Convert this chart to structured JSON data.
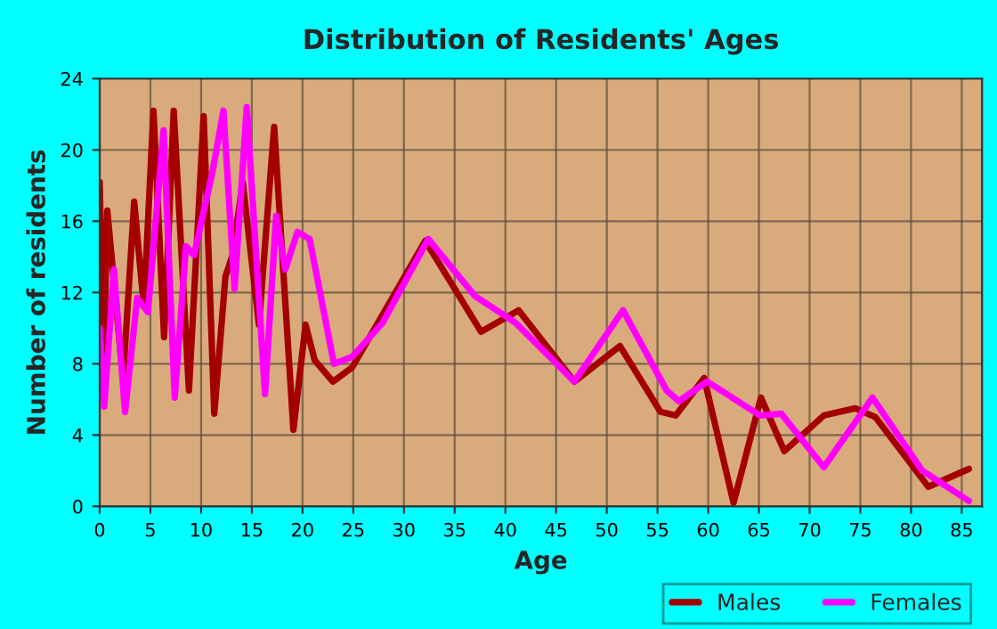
{
  "chart_data": {
    "type": "line",
    "title": "Distribution of Residents' Ages",
    "xlabel": "Age",
    "ylabel": "Number of residents",
    "xlim": [
      0,
      87
    ],
    "xticks": [
      0,
      5,
      10,
      15,
      20,
      25,
      30,
      35,
      40,
      45,
      50,
      55,
      60,
      65,
      70,
      75,
      80,
      85
    ],
    "ylim": [
      0,
      24
    ],
    "yticks": [
      0,
      4,
      8,
      12,
      16,
      20,
      24
    ],
    "grid": true,
    "legend": "bottom right",
    "marker": "none",
    "line_style": "solid",
    "series": [
      {
        "name": "Males",
        "color": "#a50000",
        "x": [
          0,
          0.4,
          0.75,
          2.3,
          3.4,
          4.35,
          5.3,
          6.35,
          7.3,
          8.8,
          10.25,
          11.3,
          12.4,
          13.1,
          14.1,
          15.7,
          17.2,
          19.1,
          20.3,
          21.2,
          23.0,
          24.9,
          32.1,
          37.6,
          41.3,
          46.8,
          51.3,
          55.3,
          56.8,
          59.6,
          62.5,
          65.2,
          67.5,
          71.4,
          74.5,
          76.5,
          81.7,
          85.7
        ],
        "values": [
          18.2,
          8,
          16.6,
          7.1,
          17.1,
          11.2,
          22.2,
          9.5,
          22.2,
          6.5,
          21.9,
          5.2,
          12.9,
          14.1,
          18.2,
          10.2,
          21.3,
          4.3,
          10.2,
          8.2,
          7.0,
          7.8,
          14.9,
          9.8,
          11.0,
          7.0,
          9.0,
          5.3,
          5.1,
          7.2,
          0.2,
          6.1,
          3.1,
          5.1,
          5.5,
          5.0,
          1.1,
          2.1
        ]
      },
      {
        "name": "Females",
        "color": "#ff00ff",
        "x": [
          0,
          0.45,
          1.4,
          2.5,
          3.7,
          4.75,
          6.3,
          7.4,
          8.5,
          9.3,
          11.1,
          12.2,
          13.3,
          14.5,
          16.3,
          17.4,
          18.3,
          19.5,
          20.7,
          23.1,
          24.9,
          27.9,
          32.4,
          37.0,
          41.0,
          46.8,
          51.6,
          55.9,
          57.1,
          59.9,
          65.1,
          67.2,
          71.4,
          76.2,
          81.1,
          85.7
        ],
        "values": [
          10,
          5.6,
          13.3,
          5.3,
          11.7,
          10.9,
          21.1,
          6.1,
          14.6,
          14.1,
          18.7,
          22.2,
          12.2,
          22.4,
          6.3,
          16.3,
          13.3,
          15.4,
          15.0,
          8.0,
          8.4,
          10.3,
          15.0,
          11.8,
          10.3,
          7.0,
          11.0,
          6.5,
          5.9,
          7.0,
          5.1,
          5.2,
          2.2,
          6.1,
          2.0,
          0.3
        ]
      }
    ]
  }
}
